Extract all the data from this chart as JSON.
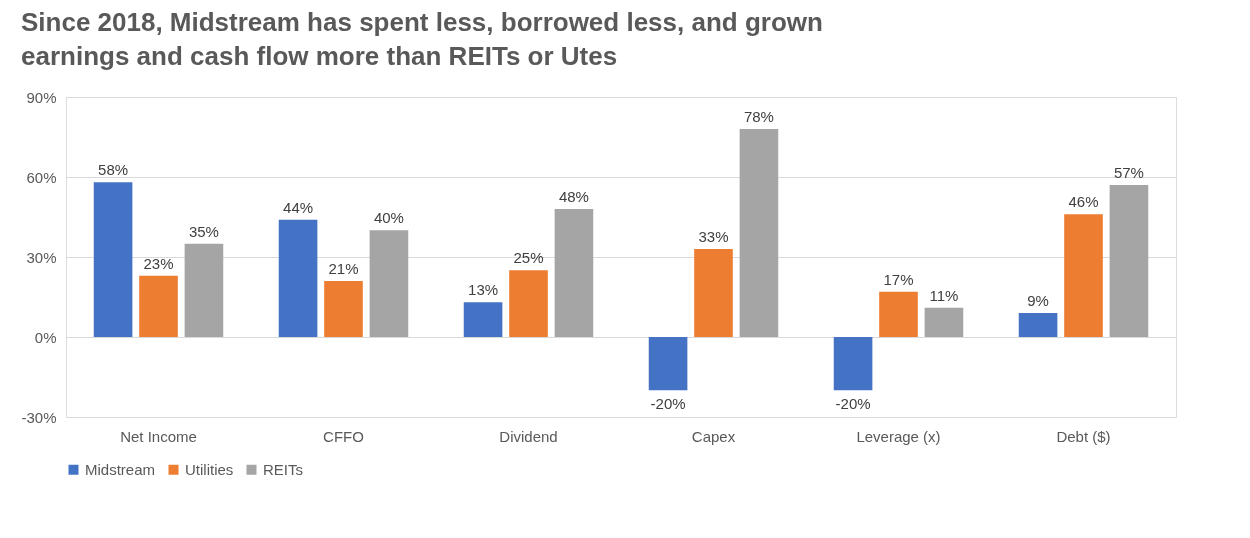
{
  "chart_data": {
    "type": "bar",
    "title": "Since 2018, Midstream has spent less, borrowed less, and grown\nearnings and cash flow more than REITs or Utes",
    "categories": [
      "Net Income",
      "CFFO",
      "Dividend",
      "Capex",
      "Leverage (x)",
      "Debt ($)"
    ],
    "series": [
      {
        "name": "Midstream",
        "color": "#4472c4",
        "values": [
          58,
          44,
          13,
          -20,
          -20,
          9
        ],
        "value_labels": [
          "58%",
          "44%",
          "13%",
          "-20%",
          "-20%",
          "9%"
        ]
      },
      {
        "name": "Utilities",
        "color": "#ed7d31",
        "values": [
          23,
          21,
          25,
          33,
          17,
          46
        ],
        "value_labels": [
          "23%",
          "21%",
          "25%",
          "33%",
          "17%",
          "46%"
        ]
      },
      {
        "name": "REITs",
        "color": "#a5a5a5",
        "values": [
          35,
          40,
          48,
          78,
          11,
          57
        ],
        "value_labels": [
          "35%",
          "40%",
          "48%",
          "78%",
          "11%",
          "57%"
        ]
      }
    ],
    "ylim": [
      -30,
      90
    ],
    "yticks": [
      {
        "value": -30,
        "label": "-30%"
      },
      {
        "value": 0,
        "label": "0%"
      },
      {
        "value": 30,
        "label": "30%"
      },
      {
        "value": 60,
        "label": "60%"
      },
      {
        "value": 90,
        "label": "90%"
      }
    ],
    "grid": "y",
    "legend": "bottom"
  }
}
